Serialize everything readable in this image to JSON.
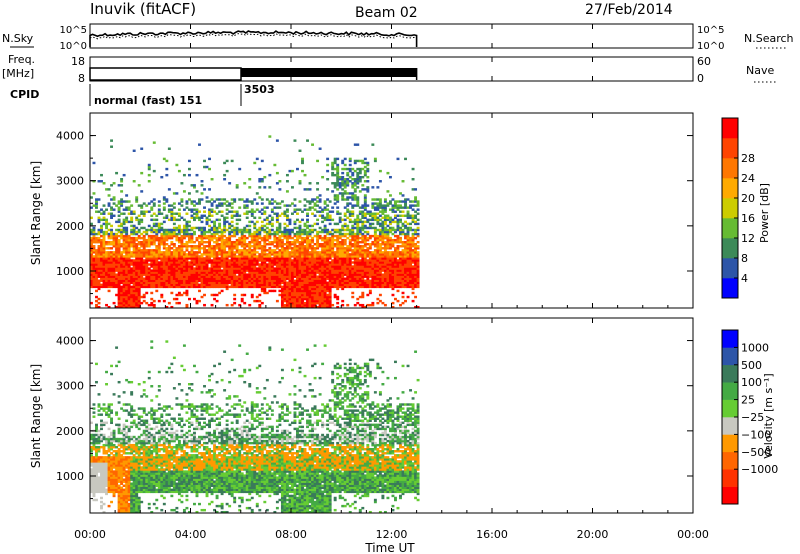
{
  "header": {
    "title": "Inuvik (fitACF)",
    "beam": "Beam 02",
    "date": "27/Feb/2014"
  },
  "sky_panel": {
    "left_label": "N.Sky",
    "left_ticks": [
      "10^5",
      "10^0"
    ],
    "right_ticks": [
      "10^5",
      "10^0"
    ],
    "right_label": "N.Search"
  },
  "freq_panel": {
    "left_label_1": "Freq.",
    "left_label_2": "[MHz]",
    "left_ticks": [
      "18",
      "8"
    ],
    "right_ticks": [
      "60",
      "0"
    ],
    "right_label": "Nave"
  },
  "cpid": {
    "label": "CPID",
    "segments": [
      {
        "start_hour": 0.0,
        "text": "normal (fast) 151"
      },
      {
        "start_hour": 6.0,
        "text": "3503"
      }
    ]
  },
  "colors": {
    "power_scale": [
      "#0000ff",
      "#2d55a8",
      "#3c8a58",
      "#66bb33",
      "#cccc00",
      "#ffaa00",
      "#ff7700",
      "#ff4400",
      "#ff0000"
    ],
    "velocity_scale": [
      "#ff0000",
      "#ff3300",
      "#ff6600",
      "#ff9900",
      "#c8c8c0",
      "#66cc33",
      "#44aa44",
      "#3a7a5a",
      "#2d55a8",
      "#0000ff"
    ]
  },
  "chart_data": [
    {
      "type": "heatmap",
      "name": "power-panel",
      "ylabel": "Slant Range [km]",
      "yticks": [
        "1000",
        "2000",
        "3000",
        "4000"
      ],
      "ylim": [
        180,
        4500
      ],
      "xlim": [
        0,
        24
      ],
      "colorbar": {
        "label": "Power [dB]",
        "ticks": [
          "4",
          "8",
          "12",
          "16",
          "20",
          "24",
          "28"
        ]
      }
    },
    {
      "type": "heatmap",
      "name": "velocity-panel",
      "ylabel": "Slant Range [km]",
      "yticks": [
        "1000",
        "2000",
        "3000",
        "4000"
      ],
      "ylim": [
        180,
        4500
      ],
      "xlim": [
        0,
        24
      ],
      "colorbar": {
        "label": "Velocity [m s⁻¹]",
        "ticks": [
          "1000",
          "500",
          "100",
          "25",
          "−25",
          "−100",
          "−500",
          "−1000"
        ]
      }
    }
  ],
  "time_axis": {
    "ticks": [
      "00:00",
      "04:00",
      "08:00",
      "12:00",
      "16:00",
      "20:00",
      "00:00"
    ],
    "label": "Time UT"
  }
}
